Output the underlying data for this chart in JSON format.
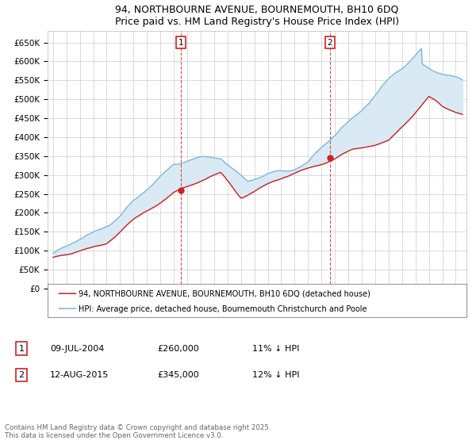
{
  "title": "94, NORTHBOURNE AVENUE, BOURNEMOUTH, BH10 6DQ",
  "subtitle": "Price paid vs. HM Land Registry's House Price Index (HPI)",
  "ylim": [
    0,
    680000
  ],
  "yticks": [
    0,
    50000,
    100000,
    150000,
    200000,
    250000,
    300000,
    350000,
    400000,
    450000,
    500000,
    550000,
    600000,
    650000
  ],
  "ytick_labels": [
    "£0",
    "£50K",
    "£100K",
    "£150K",
    "£200K",
    "£250K",
    "£300K",
    "£350K",
    "£400K",
    "£450K",
    "£500K",
    "£550K",
    "£600K",
    "£650K"
  ],
  "hpi_color": "#7db8d8",
  "hpi_fill_color": "#daeaf5",
  "price_color": "#cc2222",
  "marker1_date": 2004.53,
  "marker1_price": 260000,
  "marker1_label": "1",
  "marker2_date": 2015.62,
  "marker2_price": 345000,
  "marker2_label": "2",
  "legend_line1": "94, NORTHBOURNE AVENUE, BOURNEMOUTH, BH10 6DQ (detached house)",
  "legend_line2": "HPI: Average price, detached house, Bournemouth Christchurch and Poole",
  "row1_label": "1",
  "row1_date": "09-JUL-2004",
  "row1_price": "£260,000",
  "row1_pct": "11% ↓ HPI",
  "row2_label": "2",
  "row2_date": "12-AUG-2015",
  "row2_price": "£345,000",
  "row2_pct": "12% ↓ HPI",
  "footer": "Contains HM Land Registry data © Crown copyright and database right 2025.\nThis data is licensed under the Open Government Licence v3.0.",
  "background_color": "#ffffff",
  "grid_color": "#cccccc",
  "xmin": 1995,
  "xmax": 2025
}
